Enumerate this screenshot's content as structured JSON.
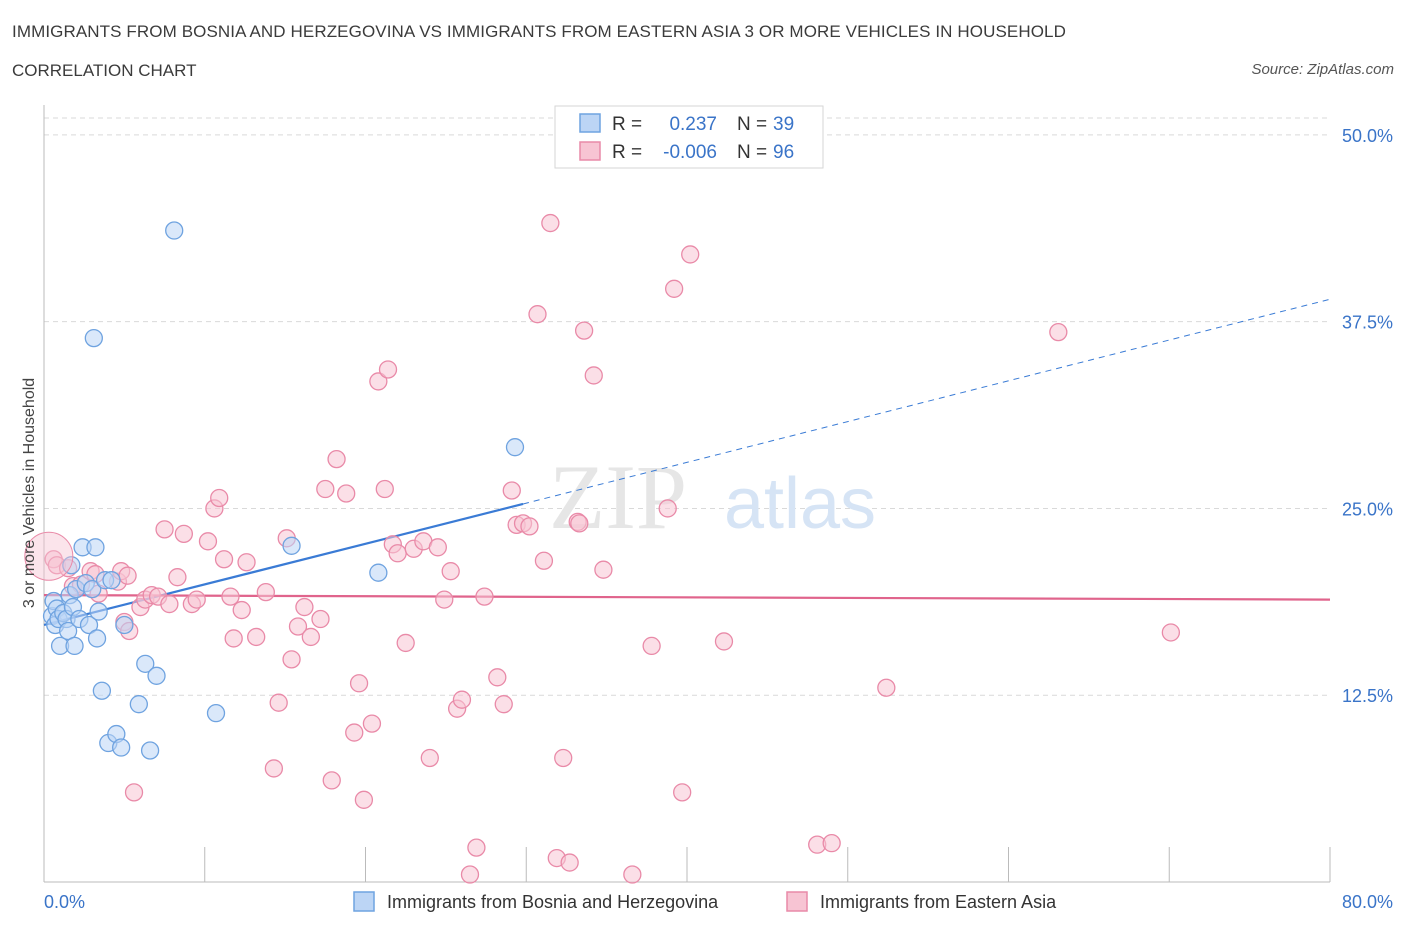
{
  "header": {
    "title": "IMMIGRANTS FROM BOSNIA AND HERZEGOVINA VS IMMIGRANTS FROM EASTERN ASIA 3 OR MORE VEHICLES IN HOUSEHOLD",
    "subtitle": "CORRELATION CHART",
    "source": "Source: ZipAtlas.com"
  },
  "watermark": {
    "zip": "ZIP",
    "atlas": "atlas"
  },
  "legend_box": [
    {
      "r_label": "R =",
      "r_value": "0.237",
      "n_label": "N =",
      "n_value": "39"
    },
    {
      "r_label": "R =",
      "r_value": "-0.006",
      "n_label": "N =",
      "n_value": "96"
    }
  ],
  "colors": {
    "blue": "#6fa3e0",
    "blue_fill": "#bcd5f5",
    "blue_line": "#3a7bd5",
    "pink": "#e98aa8",
    "pink_fill": "#f7c4d3",
    "pink_line": "#e0648c",
    "text_blue": "#3a74c8",
    "grid": "#d9d9d9"
  },
  "chart_data": {
    "type": "scatter",
    "title": "IMMIGRANTS FROM BOSNIA AND HERZEGOVINA VS IMMIGRANTS FROM EASTERN ASIA 3 OR MORE VEHICLES IN HOUSEHOLD",
    "xlabel": "",
    "ylabel": "3 or more Vehicles in Household",
    "xlim": [
      0,
      80
    ],
    "ylim": [
      0,
      52
    ],
    "x_tick_labels": [
      {
        "value": 0,
        "label": "0.0%"
      },
      {
        "value": 80,
        "label": "80.0%"
      }
    ],
    "y_tick_labels": [
      {
        "value": 12.5,
        "label": "12.5%"
      },
      {
        "value": 25,
        "label": "25.0%"
      },
      {
        "value": 37.5,
        "label": "37.5%"
      },
      {
        "value": 50,
        "label": "50.0%"
      }
    ],
    "grid": true,
    "legend_position": "bottom-center",
    "series": [
      {
        "name": "Immigrants from Bosnia and Herzegovina",
        "color": "#6fa3e0",
        "points": [
          [
            0.5,
            17.8
          ],
          [
            0.6,
            18.8
          ],
          [
            0.7,
            17.2
          ],
          [
            0.8,
            18.3
          ],
          [
            0.9,
            17.6
          ],
          [
            1.0,
            15.8
          ],
          [
            1.2,
            18.0
          ],
          [
            1.4,
            17.6
          ],
          [
            1.5,
            16.8
          ],
          [
            1.6,
            19.2
          ],
          [
            1.7,
            21.2
          ],
          [
            1.8,
            18.4
          ],
          [
            1.9,
            15.8
          ],
          [
            2.0,
            19.6
          ],
          [
            2.2,
            17.6
          ],
          [
            2.4,
            22.4
          ],
          [
            2.6,
            20.0
          ],
          [
            2.8,
            17.2
          ],
          [
            3.0,
            19.6
          ],
          [
            3.2,
            22.4
          ],
          [
            3.3,
            16.3
          ],
          [
            3.4,
            18.1
          ],
          [
            3.6,
            12.8
          ],
          [
            3.8,
            20.2
          ],
          [
            4.0,
            9.3
          ],
          [
            4.2,
            20.2
          ],
          [
            4.5,
            9.9
          ],
          [
            4.8,
            9.0
          ],
          [
            5.0,
            17.2
          ],
          [
            5.9,
            11.9
          ],
          [
            6.3,
            14.6
          ],
          [
            6.6,
            8.8
          ],
          [
            7.0,
            13.8
          ],
          [
            8.1,
            43.6
          ],
          [
            10.7,
            11.3
          ],
          [
            3.1,
            36.4
          ],
          [
            15.4,
            22.5
          ],
          [
            20.8,
            20.7
          ],
          [
            29.3,
            29.1
          ]
        ]
      },
      {
        "name": "Immigrants from Eastern Asia",
        "color": "#e98aa8",
        "points": [
          [
            0.6,
            21.6
          ],
          [
            0.8,
            21.2
          ],
          [
            1.5,
            21.0
          ],
          [
            1.8,
            19.8
          ],
          [
            2.3,
            19.9
          ],
          [
            2.9,
            20.8
          ],
          [
            3.2,
            20.6
          ],
          [
            3.4,
            19.3
          ],
          [
            4.6,
            20.1
          ],
          [
            4.8,
            20.8
          ],
          [
            5.0,
            17.4
          ],
          [
            5.2,
            20.5
          ],
          [
            5.3,
            16.8
          ],
          [
            5.6,
            6.0
          ],
          [
            6.0,
            18.4
          ],
          [
            6.3,
            18.9
          ],
          [
            6.7,
            19.2
          ],
          [
            7.1,
            19.1
          ],
          [
            7.5,
            23.6
          ],
          [
            7.8,
            18.6
          ],
          [
            8.3,
            20.4
          ],
          [
            8.7,
            23.3
          ],
          [
            9.2,
            18.6
          ],
          [
            9.5,
            18.9
          ],
          [
            10.2,
            22.8
          ],
          [
            10.6,
            25.0
          ],
          [
            10.9,
            25.7
          ],
          [
            11.2,
            21.6
          ],
          [
            11.6,
            19.1
          ],
          [
            11.8,
            16.3
          ],
          [
            12.3,
            18.2
          ],
          [
            12.6,
            21.4
          ],
          [
            13.2,
            16.4
          ],
          [
            13.8,
            19.4
          ],
          [
            14.3,
            7.6
          ],
          [
            14.6,
            12.0
          ],
          [
            15.1,
            23.0
          ],
          [
            15.4,
            14.9
          ],
          [
            15.8,
            17.1
          ],
          [
            16.2,
            18.4
          ],
          [
            16.6,
            16.4
          ],
          [
            17.2,
            17.6
          ],
          [
            17.5,
            26.3
          ],
          [
            17.9,
            6.8
          ],
          [
            18.2,
            28.3
          ],
          [
            18.8,
            26.0
          ],
          [
            19.3,
            10.0
          ],
          [
            19.6,
            13.3
          ],
          [
            19.9,
            5.5
          ],
          [
            20.4,
            10.6
          ],
          [
            20.8,
            33.5
          ],
          [
            21.2,
            26.3
          ],
          [
            21.4,
            34.3
          ],
          [
            21.7,
            22.6
          ],
          [
            22.0,
            22.0
          ],
          [
            22.5,
            16.0
          ],
          [
            23.0,
            22.3
          ],
          [
            23.6,
            22.8
          ],
          [
            24.0,
            8.3
          ],
          [
            24.5,
            22.4
          ],
          [
            24.9,
            18.9
          ],
          [
            25.3,
            20.8
          ],
          [
            25.7,
            11.6
          ],
          [
            26.0,
            12.2
          ],
          [
            26.5,
            0.5
          ],
          [
            26.9,
            2.3
          ],
          [
            27.4,
            19.1
          ],
          [
            28.2,
            13.7
          ],
          [
            28.6,
            11.9
          ],
          [
            29.1,
            26.2
          ],
          [
            29.4,
            23.9
          ],
          [
            29.8,
            24.0
          ],
          [
            30.2,
            23.8
          ],
          [
            30.7,
            38.0
          ],
          [
            31.1,
            21.5
          ],
          [
            31.5,
            44.1
          ],
          [
            31.9,
            1.6
          ],
          [
            32.3,
            8.3
          ],
          [
            32.7,
            1.3
          ],
          [
            33.2,
            24.1
          ],
          [
            33.6,
            36.9
          ],
          [
            34.2,
            33.9
          ],
          [
            34.8,
            20.9
          ],
          [
            36.6,
            0.5
          ],
          [
            37.8,
            15.8
          ],
          [
            38.8,
            25.0
          ],
          [
            39.2,
            39.7
          ],
          [
            39.7,
            6.0
          ],
          [
            40.2,
            42.0
          ],
          [
            42.3,
            16.1
          ],
          [
            48.1,
            2.5
          ],
          [
            49.0,
            2.6
          ],
          [
            52.4,
            13.0
          ],
          [
            63.1,
            36.8
          ],
          [
            70.1,
            16.7
          ],
          [
            33.3,
            24.0
          ]
        ]
      }
    ],
    "trend_lines": [
      {
        "series": "Immigrants from Bosnia and Herzegovina",
        "solid": [
          [
            0,
            17.2
          ],
          [
            29.8,
            25.3
          ]
        ],
        "dashed": [
          [
            29.8,
            25.3
          ],
          [
            80,
            39.0
          ]
        ]
      },
      {
        "series": "Immigrants from Eastern Asia",
        "solid": [
          [
            0,
            19.2
          ],
          [
            80,
            18.9
          ]
        ]
      }
    ]
  }
}
